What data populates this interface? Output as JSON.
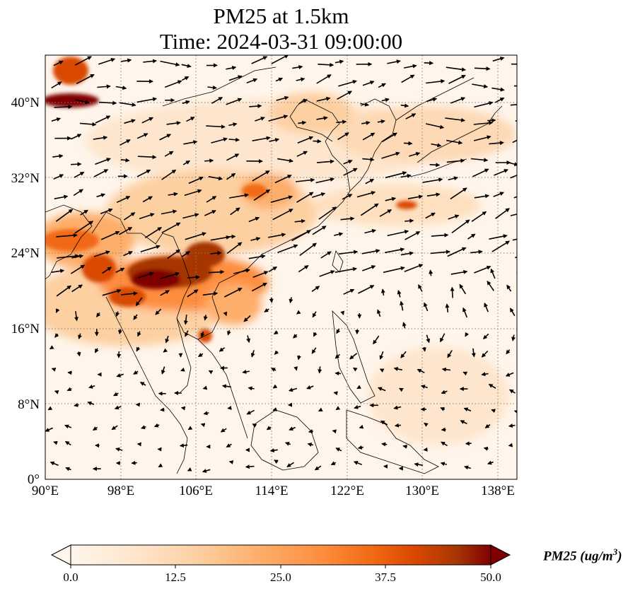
{
  "title": {
    "line1": "PM25 at 1.5km",
    "line2": "Time: 2024-03-31 09:00:00"
  },
  "map": {
    "lon_ticks": [
      "90°E",
      "98°E",
      "106°E",
      "114°E",
      "122°E",
      "130°E",
      "138°E"
    ],
    "lat_ticks": [
      "0°",
      "8°N",
      "16°N",
      "24°N",
      "32°N",
      "40°N"
    ],
    "lon_range": [
      90,
      140
    ],
    "lat_range": [
      0,
      45
    ],
    "gridlines": "dotted"
  },
  "colorbar": {
    "label": "PM25 (ug/m",
    "label_sup": "3",
    "label_close": ")",
    "ticks": [
      "0.0",
      "12.5",
      "25.0",
      "37.5",
      "50.0"
    ],
    "range": [
      0,
      50
    ],
    "colormap": [
      "#fff5eb",
      "#fee6ce",
      "#fdd0a2",
      "#fdae6b",
      "#fd8d3c",
      "#f16913",
      "#d94801",
      "#a63603",
      "#7f0000"
    ]
  }
}
